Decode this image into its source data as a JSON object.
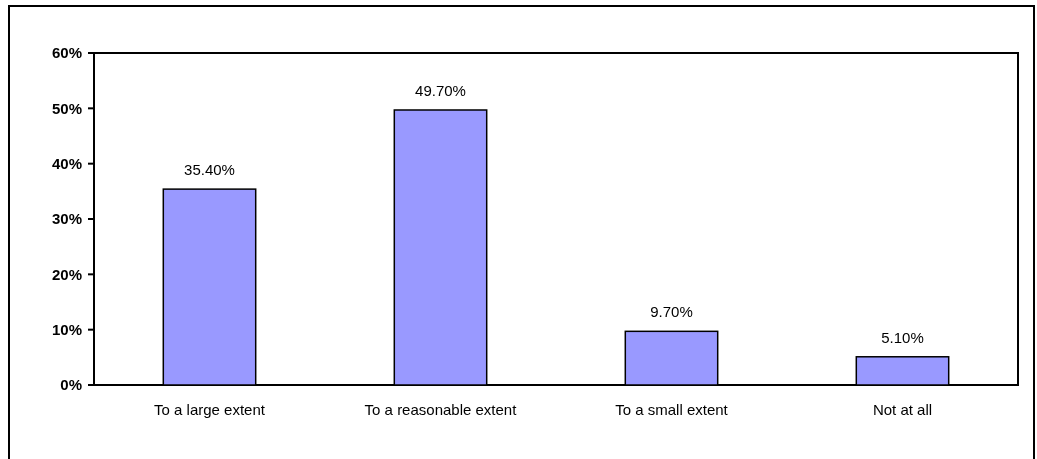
{
  "chart_data": {
    "type": "bar",
    "categories": [
      "To a large extent",
      "To a reasonable extent",
      "To a small extent",
      "Not at all"
    ],
    "values": [
      35.4,
      49.7,
      9.7,
      5.1
    ],
    "value_labels": [
      "35.40%",
      "49.70%",
      "9.70%",
      "5.10%"
    ],
    "color": "#9999ff",
    "ylim": [
      0,
      60
    ],
    "yticks": [
      {
        "value": 0,
        "label": "0%"
      },
      {
        "value": 10,
        "label": "10%"
      },
      {
        "value": 20,
        "label": "20%"
      },
      {
        "value": 30,
        "label": "30%"
      },
      {
        "value": 40,
        "label": "40%"
      },
      {
        "value": 50,
        "label": "50%"
      },
      {
        "value": 60,
        "label": "60%"
      }
    ],
    "grid": false
  }
}
